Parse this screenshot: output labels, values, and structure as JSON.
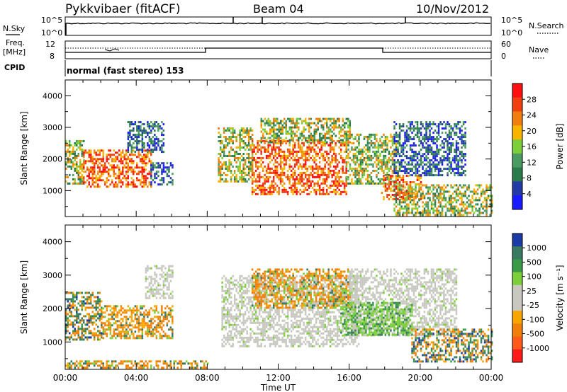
{
  "header": {
    "station": "Pykkvibaer (fitACF)",
    "beam": "Beam 04",
    "date": "10/Nov/2012"
  },
  "noise_panel": {
    "left_label": "N.Sky",
    "right_label": "N.Search",
    "left_ticks": [
      "10^5",
      "10^0"
    ],
    "right_ticks": [
      "10^5",
      "10^0"
    ]
  },
  "freq_panel": {
    "left_label_line1": "Freq.",
    "left_label_line2": "[MHz]",
    "right_label": "Nave",
    "left_ticks": [
      "12",
      "8"
    ],
    "right_ticks": [
      "60",
      "0"
    ]
  },
  "cpid": {
    "label": "CPID",
    "mode_text": "normal (fast stereo) 153"
  },
  "colors": {
    "power_scale": [
      "#1a1aff",
      "#233aa6",
      "#2a7a4a",
      "#4a9a62",
      "#7dcf3a",
      "#f7b500",
      "#f07f10",
      "#f04010",
      "#ff1010"
    ],
    "velocity_scale": [
      "#ff1a1a",
      "#ff5a1a",
      "#f0800a",
      "#f7a500",
      "#c8c8c0",
      "#c8c8c0",
      "#7dcf3a",
      "#3a9a48",
      "#3a7a62",
      "#1a3aa6"
    ]
  },
  "chart_data": [
    {
      "type": "heatmap",
      "title": "",
      "ylabel": "Slant Range [km]",
      "xlabel": "",
      "colorbar_label": "Power [dB]",
      "colorbar_ticks": [
        "28",
        "24",
        "20",
        "16",
        "12",
        "8",
        "4"
      ],
      "ylim": [
        180,
        4500
      ],
      "y_ticks": [
        1000,
        2000,
        3000,
        4000
      ],
      "xlim_hours": [
        0,
        24
      ],
      "regions": [
        {
          "t0": 0.0,
          "t1": 1.0,
          "r0": 1200,
          "r1": 2600,
          "level": "mid"
        },
        {
          "t0": 1.0,
          "t1": 4.8,
          "r0": 1100,
          "r1": 2300,
          "level": "high"
        },
        {
          "t0": 4.8,
          "t1": 6.0,
          "r0": 1200,
          "r1": 1900,
          "level": "low"
        },
        {
          "t0": 3.5,
          "t1": 5.5,
          "r0": 2200,
          "r1": 3200,
          "level": "low"
        },
        {
          "t0": 8.6,
          "t1": 10.5,
          "r0": 1300,
          "r1": 3000,
          "level": "mid"
        },
        {
          "t0": 10.5,
          "t1": 15.8,
          "r0": 900,
          "r1": 2600,
          "level": "high"
        },
        {
          "t0": 11.0,
          "t1": 16.0,
          "r0": 2500,
          "r1": 3300,
          "level": "mid"
        },
        {
          "t0": 15.8,
          "t1": 18.8,
          "r0": 1200,
          "r1": 2800,
          "level": "mid"
        },
        {
          "t0": 17.8,
          "t1": 20.0,
          "r0": 700,
          "r1": 1500,
          "level": "high"
        },
        {
          "t0": 18.5,
          "t1": 24.0,
          "r0": 200,
          "r1": 1200,
          "level": "mid"
        },
        {
          "t0": 18.5,
          "t1": 22.5,
          "r0": 1500,
          "r1": 3200,
          "level": "low"
        }
      ]
    },
    {
      "type": "heatmap",
      "title": "",
      "ylabel": "Slant Range [km]",
      "xlabel": "Time UT",
      "colorbar_label": "Velocity [m s⁻¹]",
      "colorbar_ticks": [
        "1000",
        "500",
        "100",
        "25",
        "-25",
        "-100",
        "-500",
        "-1000"
      ],
      "ylim": [
        180,
        4500
      ],
      "y_ticks": [
        1000,
        2000,
        3000,
        4000
      ],
      "x_ticks": [
        "00:00",
        "04:00",
        "08:00",
        "12:00",
        "16:00",
        "20:00",
        "00:00"
      ],
      "xlim_hours": [
        0,
        24
      ],
      "regions": [
        {
          "t0": 0.0,
          "t1": 2.0,
          "r0": 1100,
          "r1": 2500,
          "level": "mixed"
        },
        {
          "t0": 2.0,
          "t1": 6.0,
          "r0": 1100,
          "r1": 2100,
          "level": "away"
        },
        {
          "t0": 4.5,
          "t1": 6.0,
          "r0": 2300,
          "r1": 3300,
          "level": "ground"
        },
        {
          "t0": 8.8,
          "t1": 16.5,
          "r0": 900,
          "r1": 3000,
          "level": "ground"
        },
        {
          "t0": 10.5,
          "t1": 16.0,
          "r0": 2000,
          "r1": 3200,
          "level": "away"
        },
        {
          "t0": 16.0,
          "t1": 22.0,
          "r0": 1200,
          "r1": 3200,
          "level": "ground"
        },
        {
          "t0": 15.5,
          "t1": 19.5,
          "r0": 1200,
          "r1": 2200,
          "level": "toward"
        },
        {
          "t0": 19.5,
          "t1": 24.0,
          "r0": 400,
          "r1": 1400,
          "level": "mixed"
        },
        {
          "t0": 0.0,
          "t1": 8.0,
          "r0": 200,
          "r1": 450,
          "level": "away"
        }
      ]
    }
  ]
}
